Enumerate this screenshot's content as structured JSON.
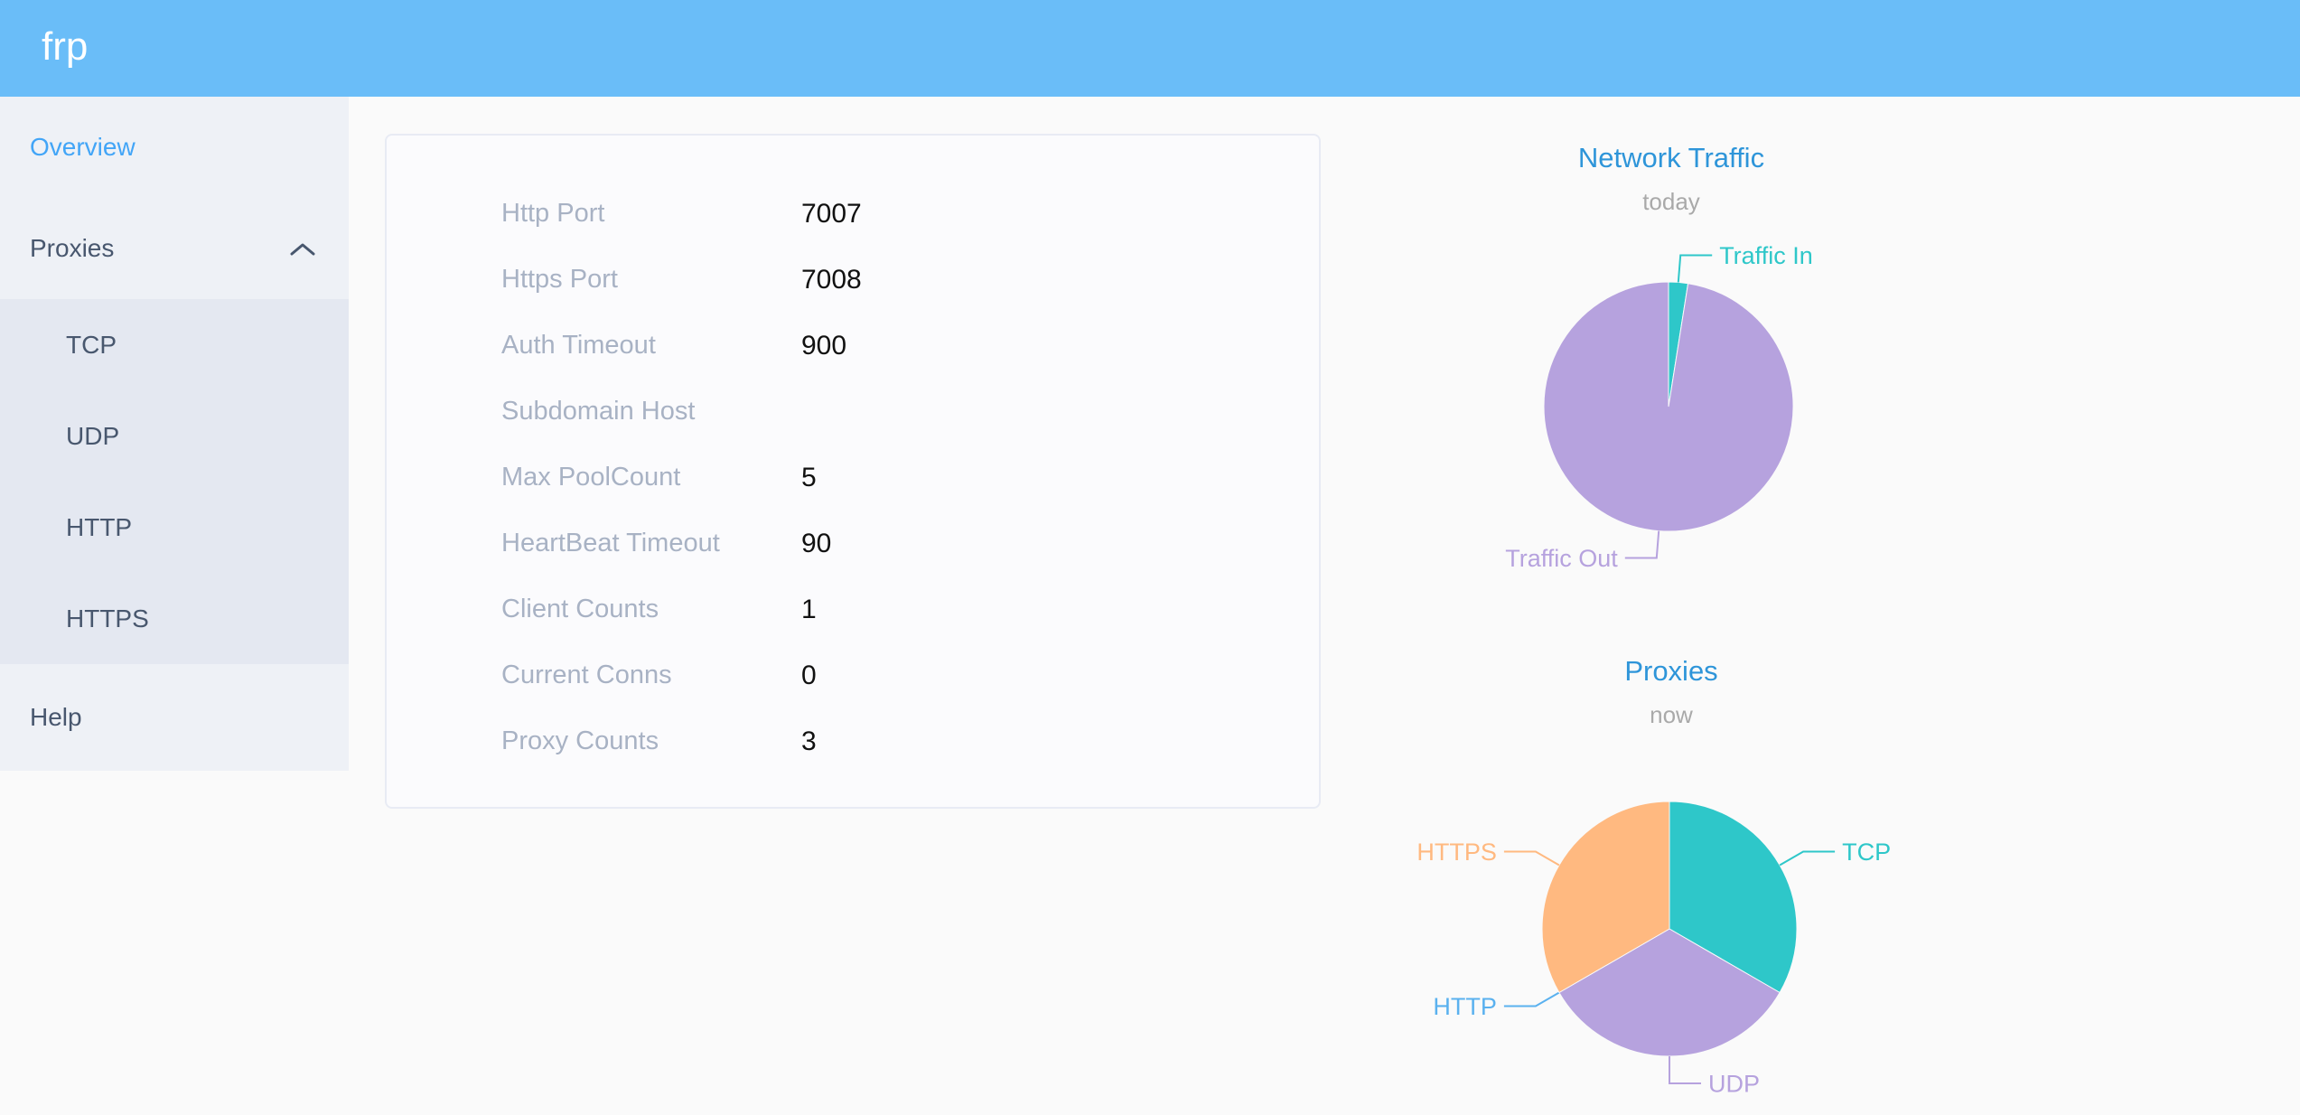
{
  "app": {
    "logo": "frp"
  },
  "sidebar": {
    "items": [
      {
        "label": "Overview",
        "active": true
      },
      {
        "label": "Proxies",
        "expanded": true,
        "children": [
          {
            "label": "TCP"
          },
          {
            "label": "UDP"
          },
          {
            "label": "HTTP"
          },
          {
            "label": "HTTPS"
          }
        ]
      },
      {
        "label": "Help"
      }
    ]
  },
  "overview": {
    "rows": [
      {
        "label": "Http Port",
        "value": "7007"
      },
      {
        "label": "Https Port",
        "value": "7008"
      },
      {
        "label": "Auth Timeout",
        "value": "900"
      },
      {
        "label": "Subdomain Host",
        "value": ""
      },
      {
        "label": "Max PoolCount",
        "value": "5"
      },
      {
        "label": "HeartBeat Timeout",
        "value": "90"
      },
      {
        "label": "Client Counts",
        "value": "1"
      },
      {
        "label": "Current Conns",
        "value": "0"
      },
      {
        "label": "Proxy Counts",
        "value": "3"
      }
    ]
  },
  "chart_data": [
    {
      "type": "pie",
      "title": "Network Traffic",
      "subtitle": "today",
      "legend": "none",
      "labels_shown": true,
      "slices": [
        {
          "label": "Traffic In",
          "percent": 2.5,
          "color": "#2ec7c9"
        },
        {
          "label": "Traffic Out",
          "percent": 97.5,
          "color": "#b6a2de"
        }
      ]
    },
    {
      "type": "pie",
      "title": "Proxies",
      "subtitle": "now",
      "legend": "none",
      "labels_shown": true,
      "slices": [
        {
          "label": "TCP",
          "value": 1,
          "percent": 33.3,
          "color": "#2ec7c9"
        },
        {
          "label": "UDP",
          "value": 1,
          "percent": 33.3,
          "color": "#b6a2de"
        },
        {
          "label": "HTTP",
          "value": 0,
          "percent": 0,
          "color": "#5ab1ef"
        },
        {
          "label": "HTTPS",
          "value": 1,
          "percent": 33.3,
          "color": "#ffb980"
        }
      ]
    }
  ],
  "theme": {
    "header_bg": "#6abdf8",
    "logo_color": "#ffffff",
    "sidebar_bg": "#eef1f6",
    "submenu_bg": "#e4e8f1",
    "menu_text": "#48576e",
    "menu_active": "#42a5f7",
    "page_bg": "#fafafa",
    "card_bg": "#fbfbfd",
    "card_border": "#e8ebf4",
    "label_color": "#a8b2c4",
    "value_color": "#111111",
    "chart_title": "#2e95d9",
    "chart_subtitle": "#a9a9a9"
  }
}
